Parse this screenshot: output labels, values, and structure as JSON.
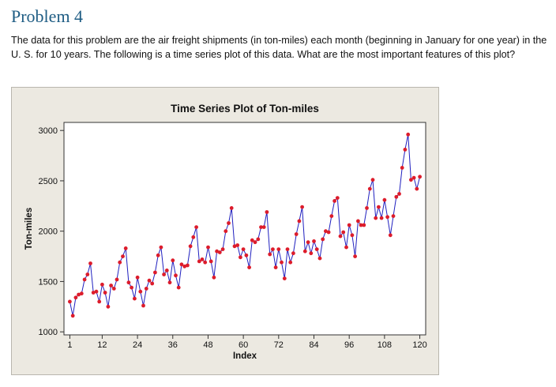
{
  "heading": "Problem 4",
  "prompt": "The data for this problem are the air freight shipments (in ton-miles) each month (beginning in January for one year) in the U. S. for 10 years.  The following is  a time series plot of this data.  What are the most important features of this plot?",
  "colors": {
    "heading": "#1f5d84",
    "line": "#1f1fbf",
    "marker": "#dd1c2b",
    "panel": "#ece9e1"
  },
  "chart_data": {
    "type": "line",
    "title": "Time Series Plot of Ton-miles",
    "xlabel": "Index",
    "ylabel": "Ton-miles",
    "xlim": [
      -1,
      122
    ],
    "ylim": [
      970,
      3080
    ],
    "x_ticks": [
      1,
      12,
      24,
      36,
      48,
      60,
      72,
      84,
      96,
      108,
      120
    ],
    "y_ticks": [
      1000,
      1500,
      2000,
      2500,
      3000
    ],
    "grid": false,
    "legend": "none",
    "series": [
      {
        "name": "Ton-miles",
        "x": [
          1,
          2,
          3,
          4,
          5,
          6,
          7,
          8,
          9,
          10,
          11,
          12,
          13,
          14,
          15,
          16,
          17,
          18,
          19,
          20,
          21,
          22,
          23,
          24,
          25,
          26,
          27,
          28,
          29,
          30,
          31,
          32,
          33,
          34,
          35,
          36,
          37,
          38,
          39,
          40,
          41,
          42,
          43,
          44,
          45,
          46,
          47,
          48,
          49,
          50,
          51,
          52,
          53,
          54,
          55,
          56,
          57,
          58,
          59,
          60,
          61,
          62,
          63,
          64,
          65,
          66,
          67,
          68,
          69,
          70,
          71,
          72,
          73,
          74,
          75,
          76,
          77,
          78,
          79,
          80,
          81,
          82,
          83,
          84,
          85,
          86,
          87,
          88,
          89,
          90,
          91,
          92,
          93,
          94,
          95,
          96,
          97,
          98,
          99,
          100,
          101,
          102,
          103,
          104,
          105,
          106,
          107,
          108,
          109,
          110,
          111,
          112,
          113,
          114,
          115,
          116,
          117,
          118,
          119,
          120
        ],
        "values": [
          1300,
          1160,
          1340,
          1370,
          1380,
          1520,
          1570,
          1680,
          1390,
          1400,
          1300,
          1470,
          1390,
          1250,
          1460,
          1430,
          1520,
          1690,
          1750,
          1830,
          1490,
          1440,
          1330,
          1540,
          1400,
          1260,
          1430,
          1510,
          1480,
          1590,
          1760,
          1840,
          1570,
          1610,
          1490,
          1710,
          1560,
          1440,
          1670,
          1650,
          1660,
          1850,
          1940,
          2040,
          1700,
          1720,
          1690,
          1840,
          1700,
          1540,
          1800,
          1790,
          1820,
          2000,
          2080,
          2230,
          1850,
          1860,
          1740,
          1820,
          1760,
          1640,
          1910,
          1890,
          1920,
          2040,
          2040,
          2190,
          1770,
          1820,
          1640,
          1820,
          1690,
          1530,
          1820,
          1690,
          1780,
          1970,
          2100,
          2240,
          1800,
          1890,
          1780,
          1900,
          1820,
          1730,
          1920,
          2000,
          1990,
          2150,
          2300,
          2330,
          1950,
          1990,
          1840,
          2060,
          1960,
          1750,
          2100,
          2060,
          2060,
          2230,
          2420,
          2510,
          2130,
          2240,
          2130,
          2310,
          2140,
          1960,
          2150,
          2340,
          2370,
          2630,
          2810,
          2960,
          2510,
          2530,
          2420,
          2540
        ]
      }
    ]
  }
}
